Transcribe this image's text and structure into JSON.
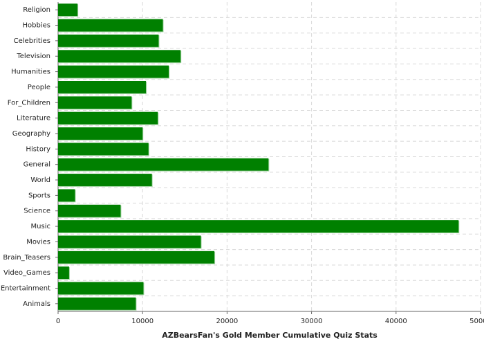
{
  "chart_data": {
    "type": "bar",
    "orientation": "horizontal",
    "title": "AZBearsFan's Gold Member Cumulative Quiz Stats",
    "categories": [
      "Religion",
      "Hobbies",
      "Celebrities",
      "Television",
      "Humanities",
      "People",
      "For_Children",
      "Literature",
      "Geography",
      "History",
      "General",
      "World",
      "Sports",
      "Science",
      "Music",
      "Movies",
      "Brain_Teasers",
      "Video_Games",
      "Entertainment",
      "Animals"
    ],
    "values": [
      2300,
      12400,
      11900,
      14500,
      13100,
      10400,
      8700,
      11800,
      10000,
      10700,
      24900,
      11100,
      2000,
      7400,
      47400,
      16900,
      18500,
      1300,
      10100,
      9200
    ],
    "color": "#008000",
    "xlim": [
      0,
      50000
    ],
    "xticks": [
      0,
      10000,
      20000,
      30000,
      40000,
      50000
    ],
    "grid": true
  }
}
